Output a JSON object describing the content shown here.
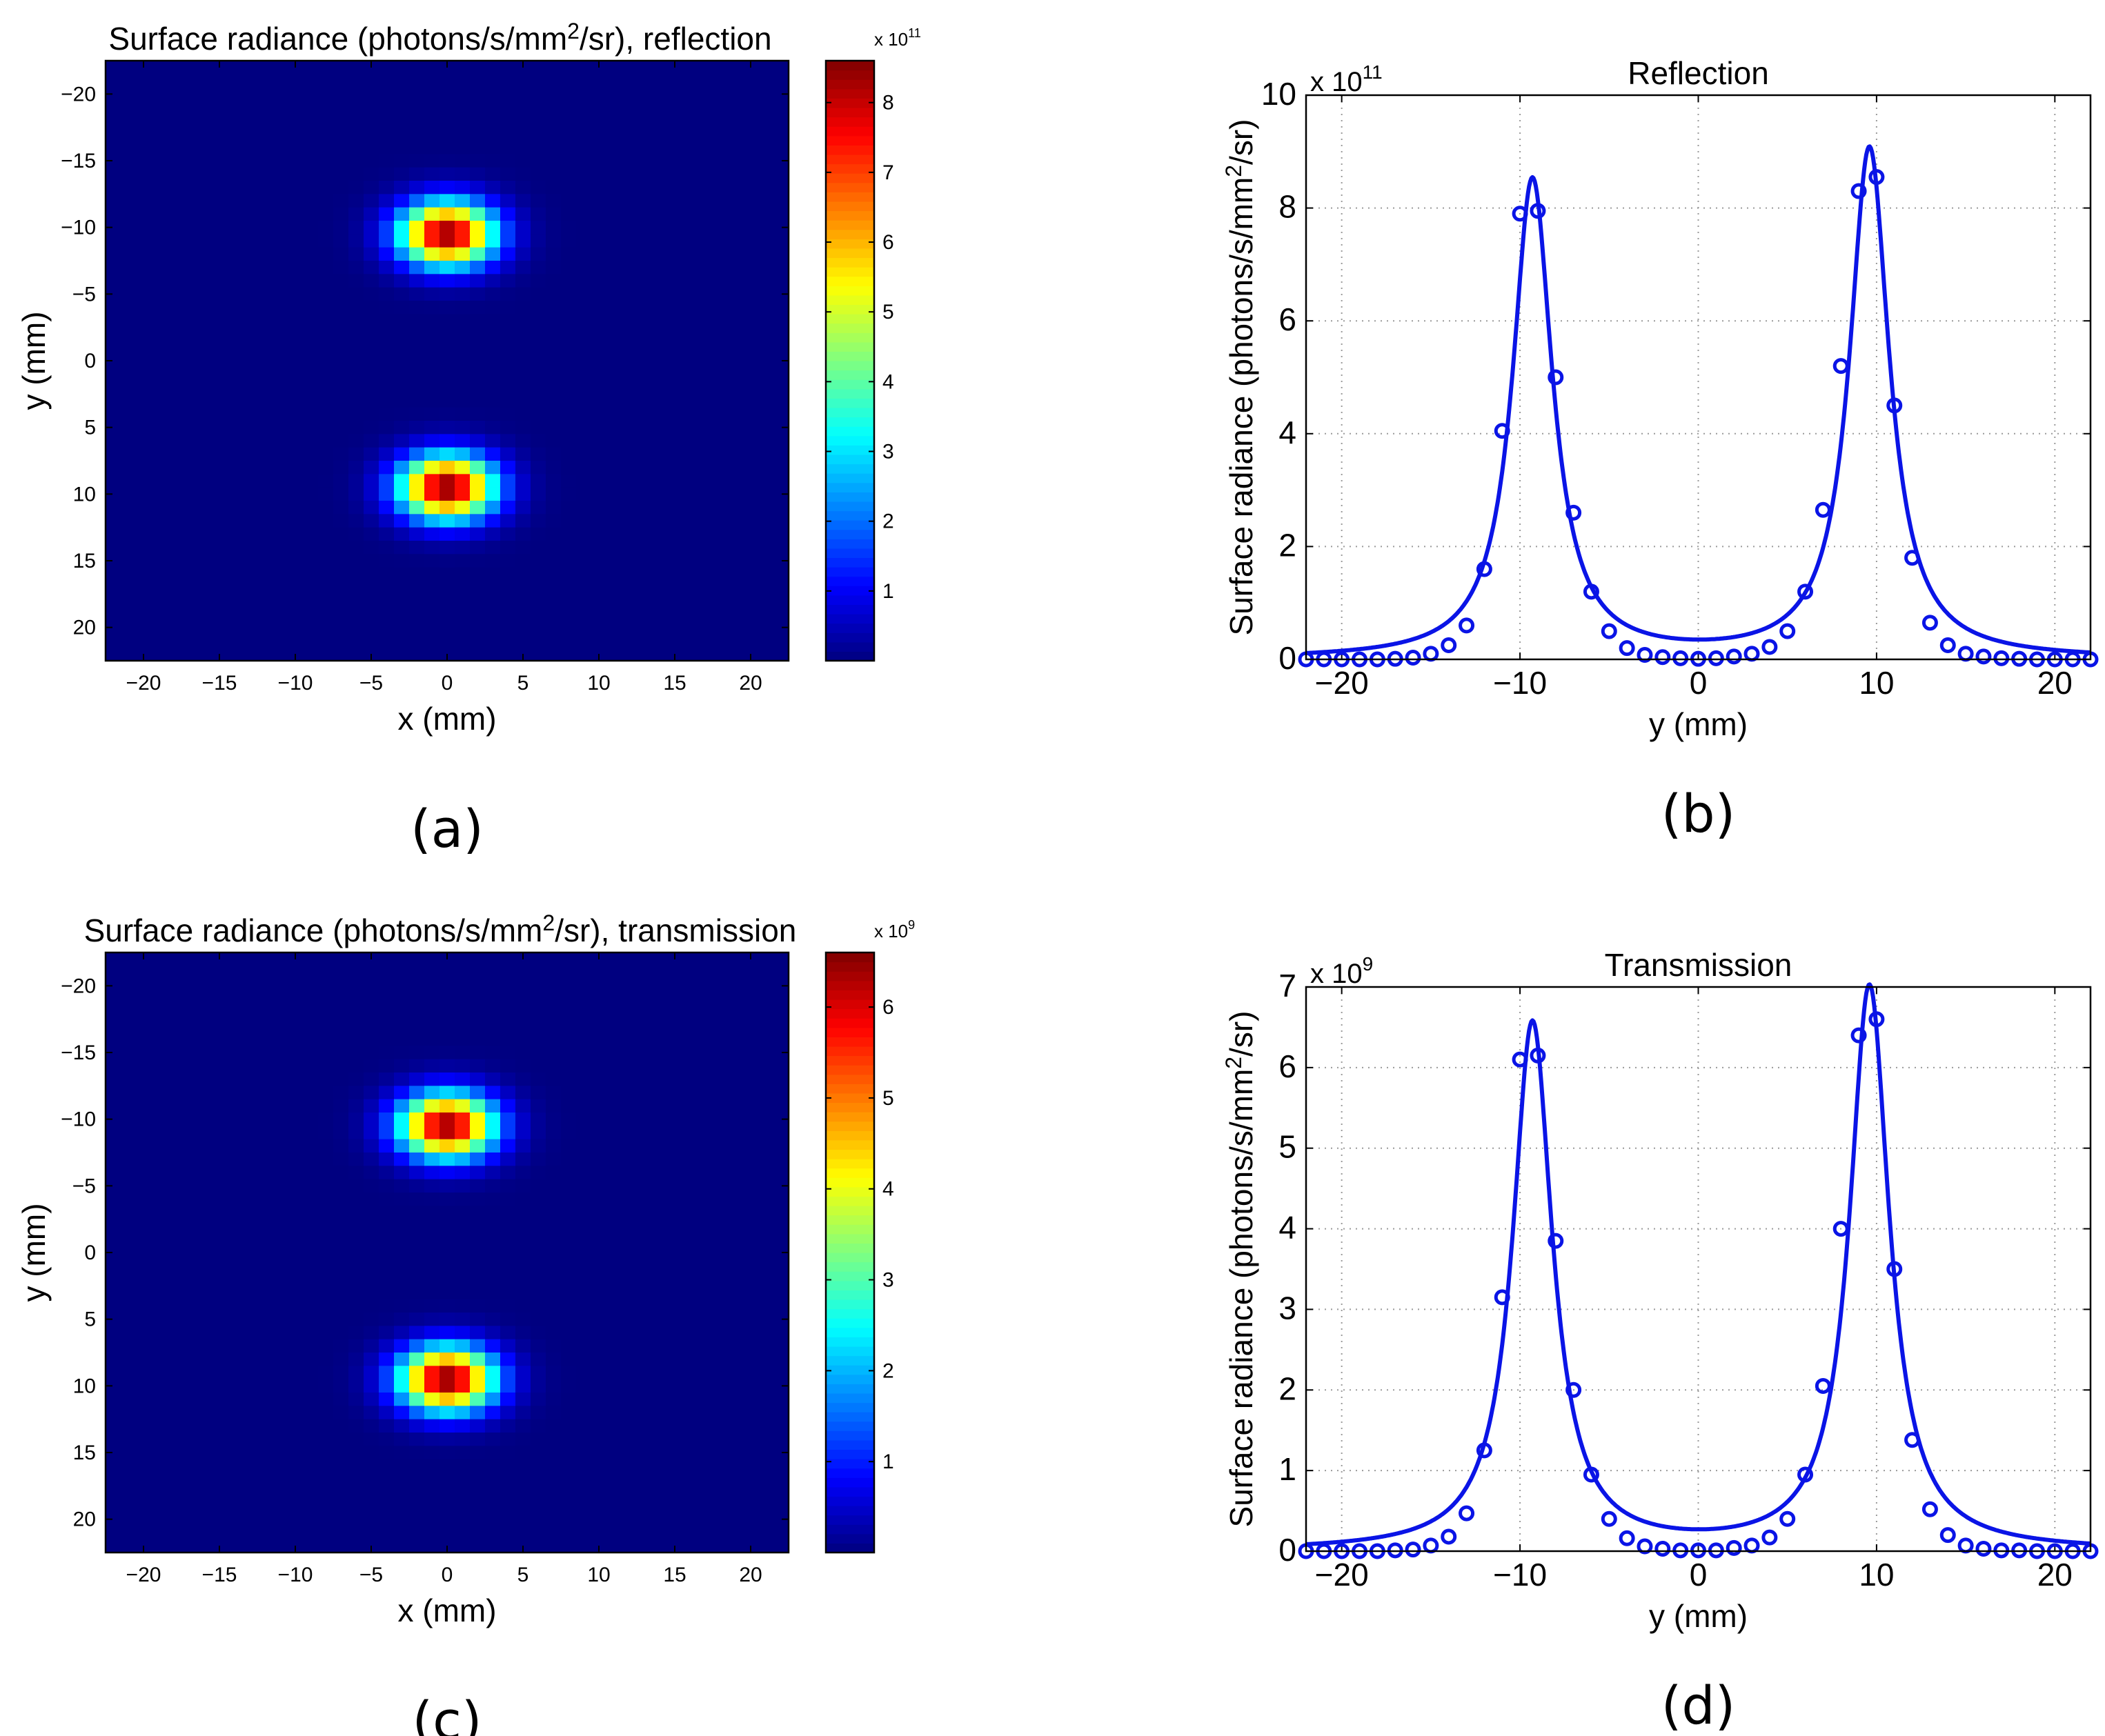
{
  "chart_data": [
    {
      "id": "a",
      "type": "heatmap",
      "title": "Surface radiance (photons/s/mm²/sr), reflection",
      "xlabel": "x (mm)",
      "ylabel": "y (mm)",
      "xlim": [
        -22.5,
        22.5
      ],
      "ylim": [
        -22.5,
        22.5
      ],
      "xticks": [
        -20,
        -15,
        -10,
        -5,
        0,
        5,
        10,
        15,
        20
      ],
      "yticks": [
        -20,
        -15,
        -10,
        -5,
        0,
        5,
        10,
        15,
        20
      ],
      "grid_cells": 45,
      "colorbar": {
        "exponent": "x 10",
        "exponent_power": "11",
        "ticks": [
          1,
          2,
          3,
          4,
          5,
          6,
          7,
          8
        ],
        "max": 8.6
      },
      "sources": [
        {
          "x": 0,
          "y": -9.5,
          "peak": 8.5,
          "sigma_x": 2.2,
          "sigma_y": 1.7
        },
        {
          "x": 0,
          "y": 9.5,
          "peak": 8.6,
          "sigma_x": 2.2,
          "sigma_y": 1.7
        }
      ],
      "caption": "(a)"
    },
    {
      "id": "b",
      "type": "line",
      "title": "Reflection",
      "xlabel": "y (mm)",
      "ylabel": "Surface radiance (photons/s/mm²/sr)",
      "exponent": "x 10",
      "exponent_power": "11",
      "xlim": [
        -22,
        22
      ],
      "ylim": [
        0,
        10
      ],
      "xticks": [
        -20,
        -10,
        0,
        10,
        20
      ],
      "yticks": [
        0,
        2,
        4,
        6,
        8,
        10
      ],
      "grid": true,
      "series": [
        {
          "name": "curve",
          "peaks": [
            {
              "center": -9.3,
              "amp": 8.5,
              "width": 1.35
            },
            {
              "center": 9.6,
              "amp": 9.05,
              "width": 1.35
            }
          ]
        },
        {
          "name": "samples",
          "x": [
            -22,
            -21,
            -20,
            -19,
            -18,
            -17,
            -16,
            -15,
            -14,
            -13,
            -12,
            -11,
            -10,
            -9,
            -8,
            -7,
            -6,
            -5,
            -4,
            -3,
            -2,
            -1,
            0,
            1,
            2,
            3,
            4,
            5,
            6,
            7,
            8,
            9,
            10,
            11,
            12,
            13,
            14,
            15,
            16,
            17,
            18,
            19,
            20,
            21,
            22
          ],
          "y": [
            0.0,
            0.0,
            0.0,
            0.0,
            0.0,
            0.01,
            0.03,
            0.1,
            0.25,
            0.6,
            1.6,
            4.05,
            7.9,
            7.95,
            5.0,
            2.6,
            1.2,
            0.5,
            0.2,
            0.08,
            0.04,
            0.02,
            0.01,
            0.02,
            0.05,
            0.1,
            0.22,
            0.5,
            1.2,
            2.65,
            5.2,
            8.3,
            8.55,
            4.5,
            1.8,
            0.65,
            0.25,
            0.1,
            0.05,
            0.02,
            0.01,
            0.0,
            0.0,
            0.0,
            0.0
          ]
        }
      ],
      "caption": "(b)"
    },
    {
      "id": "c",
      "type": "heatmap",
      "title": "Surface radiance (photons/s/mm²/sr), transmission",
      "xlabel": "x (mm)",
      "ylabel": "y (mm)",
      "xlim": [
        -22.5,
        22.5
      ],
      "ylim": [
        -22.5,
        22.5
      ],
      "xticks": [
        -20,
        -15,
        -10,
        -5,
        0,
        5,
        10,
        15,
        20
      ],
      "yticks": [
        -20,
        -15,
        -10,
        -5,
        0,
        5,
        10,
        15,
        20
      ],
      "grid_cells": 45,
      "colorbar": {
        "exponent": "x 10",
        "exponent_power": "9",
        "ticks": [
          1,
          2,
          3,
          4,
          5,
          6
        ],
        "max": 6.6
      },
      "sources": [
        {
          "x": 0,
          "y": -9.5,
          "peak": 6.5,
          "sigma_x": 2.2,
          "sigma_y": 1.7
        },
        {
          "x": 0,
          "y": 9.5,
          "peak": 6.6,
          "sigma_x": 2.2,
          "sigma_y": 1.7
        }
      ],
      "caption": "(c)"
    },
    {
      "id": "d",
      "type": "line",
      "title": "Transmission",
      "xlabel": "y (mm)",
      "ylabel": "Surface radiance (photons/s/mm²/sr)",
      "exponent": "x 10",
      "exponent_power": "9",
      "xlim": [
        -22,
        22
      ],
      "ylim": [
        0,
        7
      ],
      "xticks": [
        -20,
        -10,
        0,
        10,
        20
      ],
      "yticks": [
        0,
        1,
        2,
        3,
        4,
        5,
        6,
        7
      ],
      "grid": true,
      "series": [
        {
          "name": "curve",
          "peaks": [
            {
              "center": -9.3,
              "amp": 6.55,
              "width": 1.35
            },
            {
              "center": 9.6,
              "amp": 7.0,
              "width": 1.35
            }
          ]
        },
        {
          "name": "samples",
          "x": [
            -22,
            -21,
            -20,
            -19,
            -18,
            -17,
            -16,
            -15,
            -14,
            -13,
            -12,
            -11,
            -10,
            -9,
            -8,
            -7,
            -6,
            -5,
            -4,
            -3,
            -2,
            -1,
            0,
            1,
            2,
            3,
            4,
            5,
            6,
            7,
            8,
            9,
            10,
            11,
            12,
            13,
            14,
            15,
            16,
            17,
            18,
            19,
            20,
            21,
            22
          ],
          "y": [
            0.0,
            0.0,
            0.0,
            0.0,
            0.0,
            0.01,
            0.02,
            0.07,
            0.18,
            0.47,
            1.25,
            3.15,
            6.1,
            6.15,
            3.85,
            2.0,
            0.95,
            0.4,
            0.16,
            0.06,
            0.03,
            0.01,
            0.01,
            0.01,
            0.04,
            0.07,
            0.17,
            0.4,
            0.95,
            2.05,
            4.0,
            6.4,
            6.6,
            3.5,
            1.38,
            0.52,
            0.2,
            0.07,
            0.03,
            0.01,
            0.01,
            0.0,
            0.0,
            0.0,
            0.0
          ]
        }
      ],
      "caption": "(d)"
    }
  ]
}
